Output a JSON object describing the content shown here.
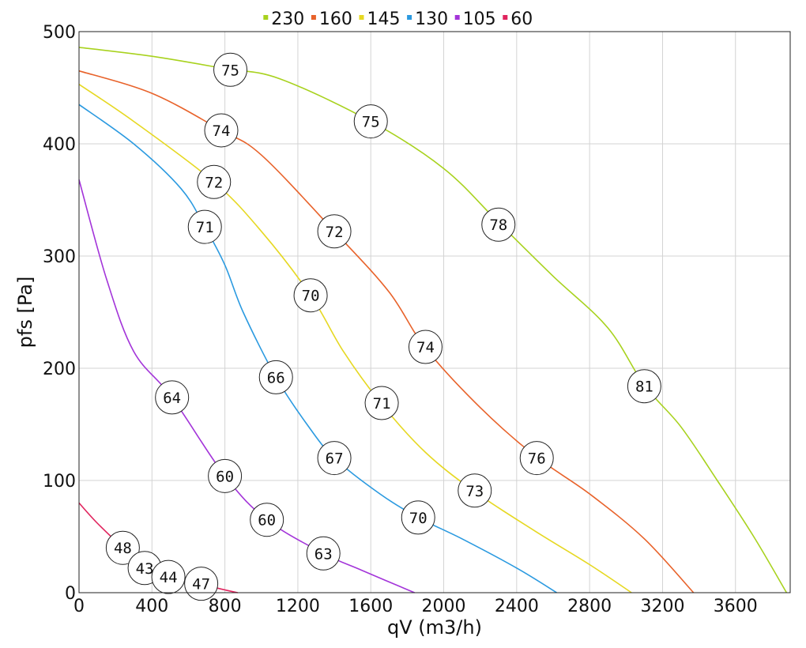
{
  "chart_data": {
    "type": "line",
    "title": "",
    "xlabel": "qV (m3/h)",
    "ylabel": "pfs [Pa]",
    "xlim": [
      0,
      3900
    ],
    "ylim": [
      0,
      500
    ],
    "x_ticks": [
      0,
      400,
      800,
      1200,
      1600,
      2000,
      2400,
      2800,
      3200,
      3600
    ],
    "y_ticks": [
      0,
      100,
      200,
      300,
      400,
      500
    ],
    "grid": true,
    "legend_position": "top-center",
    "series": [
      {
        "name": "230",
        "color": "#a8d21e",
        "points": [
          [
            0,
            486
          ],
          [
            400,
            478
          ],
          [
            800,
            467
          ],
          [
            1100,
            458
          ],
          [
            1600,
            420
          ],
          [
            2000,
            378
          ],
          [
            2300,
            330
          ],
          [
            2600,
            282
          ],
          [
            2900,
            236
          ],
          [
            3100,
            185
          ],
          [
            3300,
            148
          ],
          [
            3500,
            100
          ],
          [
            3700,
            50
          ],
          [
            3880,
            0
          ]
        ],
        "labels": [
          {
            "x": 830,
            "y": 466,
            "text": "75"
          },
          {
            "x": 1600,
            "y": 420,
            "text": "75"
          },
          {
            "x": 2300,
            "y": 328,
            "text": "78"
          },
          {
            "x": 3100,
            "y": 184,
            "text": "81"
          }
        ]
      },
      {
        "name": "160",
        "color": "#e8622a",
        "points": [
          [
            0,
            465
          ],
          [
            400,
            445
          ],
          [
            780,
            412
          ],
          [
            1000,
            390
          ],
          [
            1400,
            322
          ],
          [
            1700,
            268
          ],
          [
            1900,
            218
          ],
          [
            2200,
            165
          ],
          [
            2500,
            122
          ],
          [
            2800,
            88
          ],
          [
            3100,
            48
          ],
          [
            3370,
            0
          ]
        ],
        "labels": [
          {
            "x": 780,
            "y": 412,
            "text": "74"
          },
          {
            "x": 1400,
            "y": 322,
            "text": "72"
          },
          {
            "x": 1900,
            "y": 219,
            "text": "74"
          },
          {
            "x": 2510,
            "y": 120,
            "text": "76"
          }
        ]
      },
      {
        "name": "145",
        "color": "#e6d822",
        "points": [
          [
            0,
            453
          ],
          [
            300,
            420
          ],
          [
            740,
            366
          ],
          [
            1000,
            322
          ],
          [
            1270,
            265
          ],
          [
            1450,
            215
          ],
          [
            1660,
            168
          ],
          [
            1900,
            125
          ],
          [
            2170,
            90
          ],
          [
            2500,
            55
          ],
          [
            2800,
            25
          ],
          [
            3030,
            0
          ]
        ],
        "labels": [
          {
            "x": 740,
            "y": 366,
            "text": "72"
          },
          {
            "x": 1270,
            "y": 265,
            "text": "70"
          },
          {
            "x": 1660,
            "y": 169,
            "text": "71"
          },
          {
            "x": 2170,
            "y": 91,
            "text": "73"
          }
        ]
      },
      {
        "name": "130",
        "color": "#2b9ae0",
        "points": [
          [
            0,
            435
          ],
          [
            300,
            400
          ],
          [
            560,
            360
          ],
          [
            690,
            326
          ],
          [
            800,
            292
          ],
          [
            900,
            250
          ],
          [
            1080,
            192
          ],
          [
            1250,
            150
          ],
          [
            1400,
            120
          ],
          [
            1650,
            88
          ],
          [
            1860,
            67
          ],
          [
            2100,
            48
          ],
          [
            2400,
            22
          ],
          [
            2620,
            0
          ]
        ],
        "labels": [
          {
            "x": 690,
            "y": 326,
            "text": "71"
          },
          {
            "x": 1080,
            "y": 192,
            "text": "66"
          },
          {
            "x": 1400,
            "y": 120,
            "text": "67"
          },
          {
            "x": 1860,
            "y": 67,
            "text": "70"
          }
        ]
      },
      {
        "name": "105",
        "color": "#a334d9",
        "points": [
          [
            0,
            368
          ],
          [
            150,
            280
          ],
          [
            300,
            215
          ],
          [
            510,
            174
          ],
          [
            800,
            104
          ],
          [
            1030,
            65
          ],
          [
            1340,
            35
          ],
          [
            1550,
            20
          ],
          [
            1840,
            0
          ]
        ],
        "labels": [
          {
            "x": 510,
            "y": 174,
            "text": "64"
          },
          {
            "x": 800,
            "y": 104,
            "text": "60"
          },
          {
            "x": 1030,
            "y": 65,
            "text": "60"
          },
          {
            "x": 1340,
            "y": 35,
            "text": "63"
          }
        ]
      },
      {
        "name": "60",
        "color": "#e0245e",
        "points": [
          [
            0,
            80
          ],
          [
            100,
            62
          ],
          [
            240,
            40
          ],
          [
            360,
            22
          ],
          [
            490,
            14
          ],
          [
            670,
            8
          ],
          [
            760,
            4
          ],
          [
            870,
            0
          ]
        ],
        "labels": [
          {
            "x": 240,
            "y": 40,
            "text": "48"
          },
          {
            "x": 360,
            "y": 22,
            "text": "43"
          },
          {
            "x": 490,
            "y": 14,
            "text": "44"
          },
          {
            "x": 670,
            "y": 8,
            "text": "47"
          }
        ]
      }
    ]
  }
}
